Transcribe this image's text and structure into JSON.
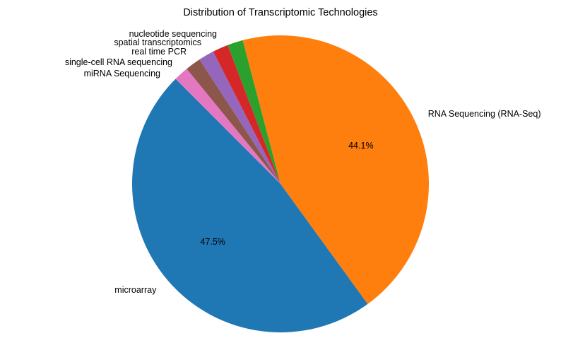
{
  "chart_data": {
    "type": "pie",
    "title": "Distribution of Transcriptomic Technologies",
    "start_angle_deg": 135,
    "direction": "counterclockwise",
    "slices": [
      {
        "label": "microarray",
        "value": 47.5,
        "pct_label": "47.5%",
        "color": "#1f77b4"
      },
      {
        "label": "RNA Sequencing (RNA-Seq)",
        "value": 44.1,
        "pct_label": "44.1%",
        "color": "#ff7f0e"
      },
      {
        "label": "nucleotide sequencing",
        "value": 1.7,
        "pct_label": "",
        "color": "#2ca02c"
      },
      {
        "label": "real time PCR",
        "value": 1.7,
        "pct_label": "",
        "color": "#d62728"
      },
      {
        "label": "spatial transcriptomics",
        "value": 1.7,
        "pct_label": "",
        "color": "#9467bd"
      },
      {
        "label": "single-cell RNA sequencing",
        "value": 1.7,
        "pct_label": "",
        "color": "#8c564b"
      },
      {
        "label": "miRNA Sequencing",
        "value": 1.6,
        "pct_label": "",
        "color": "#e377c2"
      }
    ]
  }
}
